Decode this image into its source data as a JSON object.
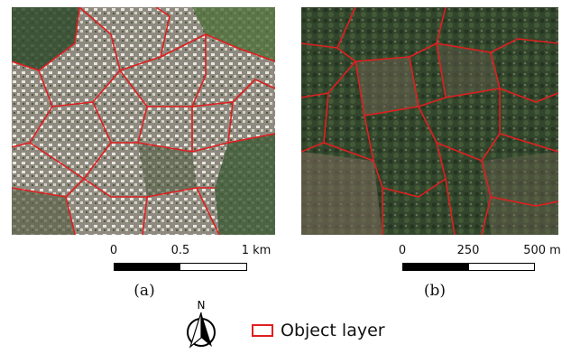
{
  "panels": [
    {
      "caption": "(a)",
      "scale_ticks": [
        "0",
        "0.5",
        "1 km"
      ],
      "image": "urban-area-satellite-image"
    },
    {
      "caption": "(b)",
      "scale_ticks": [
        "0",
        "250",
        "500 m"
      ],
      "image": "forest-area-satellite-image"
    }
  ],
  "north_arrow": {
    "label": "N"
  },
  "legend": {
    "label": "Object layer"
  },
  "colors": {
    "segment_outline": "#e01f1f",
    "scale_bar_dark": "#000000",
    "scale_bar_light": "#ffffff"
  }
}
